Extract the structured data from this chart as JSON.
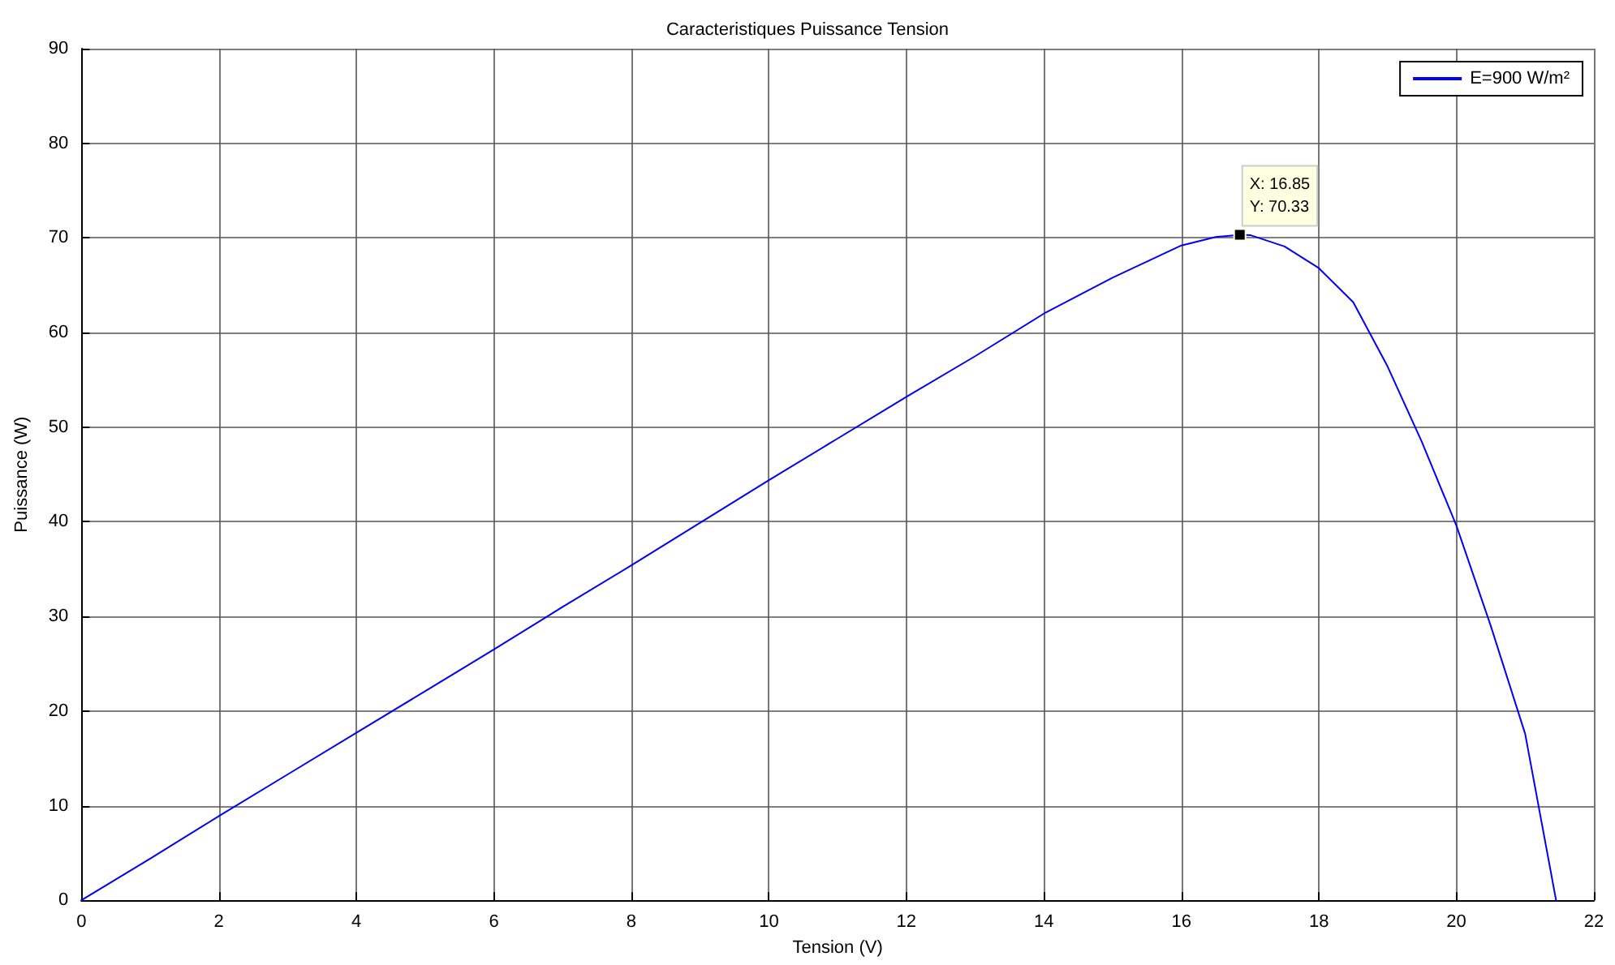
{
  "chart_data": {
    "type": "line",
    "title": "Caracteristiques Puissance Tension",
    "xlabel": "Tension (V)",
    "ylabel": "Puissance (W)",
    "annotations": [
      {
        "text": "X: 16.85\nY: 70.33",
        "x": 16.85,
        "y": 70.33
      }
    ],
    "series": [
      {
        "name": "E=900 W/m²",
        "color": "#0000ff",
        "x": [
          0,
          1,
          2,
          3,
          4,
          5,
          6,
          7,
          8,
          9,
          10,
          11,
          12,
          13,
          14,
          15,
          16,
          16.5,
          16.85,
          17,
          17.5,
          18,
          18.5,
          19,
          19.5,
          20,
          20.5,
          21,
          21.45
        ],
        "values": [
          0,
          4.4,
          8.9,
          13.3,
          17.7,
          22.1,
          26.5,
          31,
          35.4,
          39.9,
          44.4,
          48.8,
          53.2,
          57.5,
          62,
          65.8,
          69.2,
          70.1,
          70.33,
          70.3,
          69.1,
          66.8,
          63.2,
          56.4,
          48.4,
          39.6,
          29,
          17.6,
          0
        ]
      }
    ],
    "xlim": [
      0,
      22
    ],
    "xticks": [
      0,
      2,
      4,
      6,
      8,
      10,
      12,
      14,
      16,
      18,
      20,
      22
    ],
    "ylim": [
      0,
      90
    ],
    "yticks": [
      0,
      10,
      20,
      30,
      40,
      50,
      60,
      70,
      80,
      90
    ],
    "grid": true,
    "legend": "top right",
    "marker": "none",
    "line_style": "solid"
  }
}
